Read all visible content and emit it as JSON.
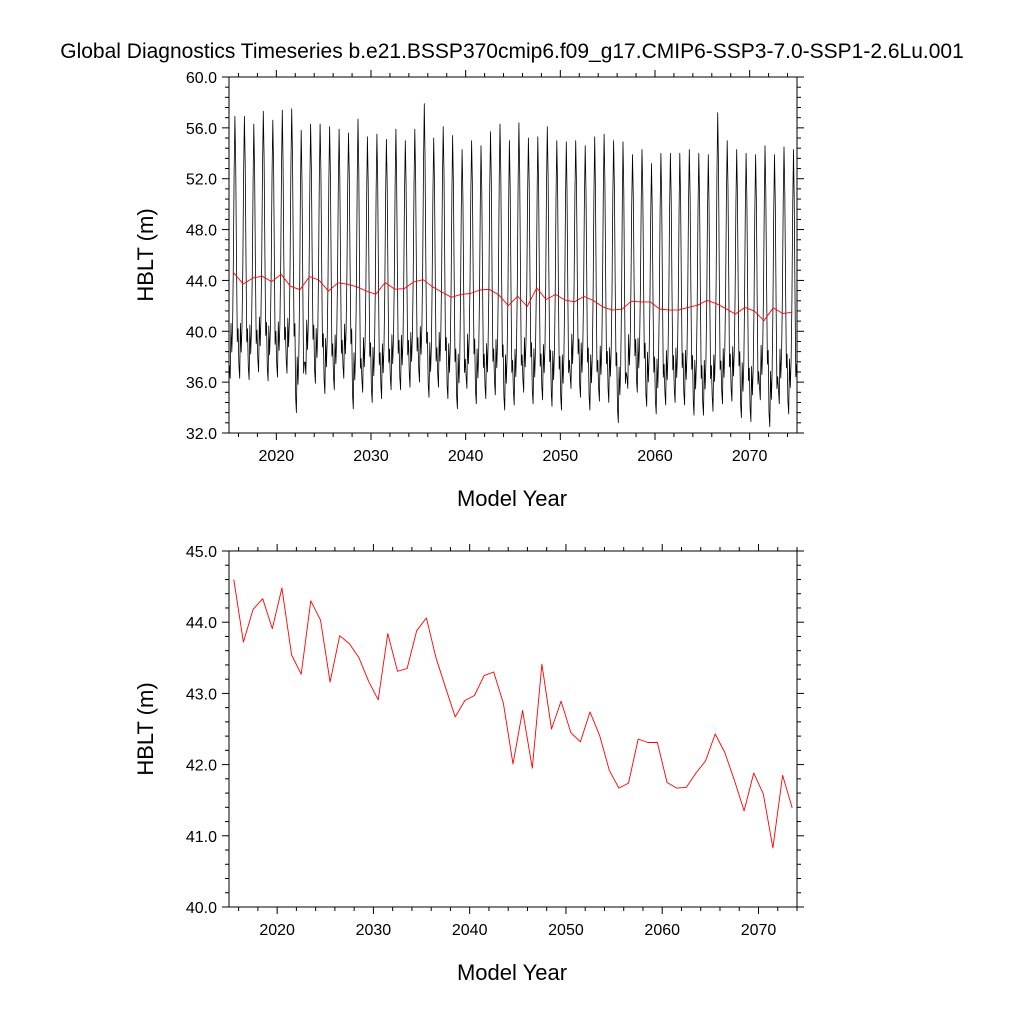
{
  "page": {
    "title": "Global Diagnostics Timeseries b.e21.BSSP370cmip6.f09_g17.CMIP6-SSP3-7.0-SSP1-2.6Lu.001"
  },
  "colors": {
    "monthly": "#000000",
    "annual": "#ff0000",
    "axis": "#000000"
  },
  "chart_data": [
    {
      "type": "line",
      "title": "Global Diagnostics Timeseries b.e21.BSSP370cmip6.f09_g17.CMIP6-SSP3-7.0-SSP1-2.6Lu.001",
      "xlabel": "Model Year",
      "ylabel": "HBLT (m)",
      "xlim": [
        2015,
        2075
      ],
      "ylim": [
        32.0,
        60.0
      ],
      "yticks": [
        32.0,
        36.0,
        40.0,
        44.0,
        48.0,
        52.0,
        56.0,
        60.0
      ],
      "ytick_labels": [
        "32.0",
        "36.0",
        "40.0",
        "44.0",
        "48.0",
        "52.0",
        "56.0",
        "60.0"
      ],
      "xticks": [
        2020,
        2030,
        2040,
        2050,
        2060,
        2070
      ],
      "xtick_labels": [
        "2020",
        "2030",
        "2040",
        "2050",
        "2060",
        "2070"
      ],
      "grid": false,
      "series": [
        {
          "color": "#000000",
          "frequency": "monthly",
          "annual_cycle": {
            "start_year": 2015,
            "end_year": 2075,
            "peak_month": 8,
            "trough_month": 1,
            "years": [
              2016,
              2017,
              2018,
              2019,
              2020,
              2021,
              2022,
              2023,
              2024,
              2025,
              2026,
              2027,
              2028,
              2029,
              2030,
              2031,
              2032,
              2033,
              2034,
              2035,
              2036,
              2037,
              2038,
              2039,
              2040,
              2041,
              2042,
              2043,
              2044,
              2045,
              2046,
              2047,
              2048,
              2049,
              2050,
              2051,
              2052,
              2053,
              2054,
              2055,
              2056,
              2057,
              2058,
              2059,
              2060,
              2061,
              2062,
              2063,
              2064,
              2065,
              2066,
              2067,
              2068,
              2069,
              2070,
              2071,
              2072,
              2073,
              2074
            ],
            "yearly_max": [
              56.9,
              56.3,
              57.3,
              56.6,
              57.4,
              57.5,
              55.8,
              56.3,
              56.3,
              56.1,
              55.9,
              55.6,
              56.7,
              55.3,
              55.5,
              55.1,
              55.9,
              55.0,
              55.9,
              57.9,
              55.2,
              56.1,
              55.4,
              54.3,
              55.0,
              54.6,
              55.7,
              56.3,
              55.0,
              56.4,
              55.2,
              55.3,
              56.1,
              55.0,
              54.9,
              55.0,
              54.6,
              55.3,
              55.5,
              55.0,
              54.9,
              53.9,
              54.3,
              53.2,
              54.0,
              54.0,
              54.0,
              54.3,
              54.0,
              53.9,
              57.2,
              55.0,
              54.3,
              54.0,
              53.9,
              54.6,
              53.9,
              54.5,
              54.3
            ],
            "yearly_min": [
              36.3,
              36.2,
              36.8,
              36.1,
              36.4,
              36.7,
              33.6,
              36.6,
              35.9,
              35.1,
              35.4,
              36.3,
              33.9,
              35.2,
              34.4,
              34.7,
              35.4,
              35.4,
              35.6,
              36.0,
              34.8,
              35.6,
              34.7,
              33.9,
              35.5,
              34.3,
              34.7,
              35.0,
              33.8,
              34.2,
              35.2,
              34.3,
              34.6,
              34.1,
              33.8,
              35.5,
              34.8,
              33.8,
              34.5,
              34.4,
              32.8,
              35.5,
              35.2,
              34.1,
              33.5,
              34.2,
              34.4,
              34.2,
              33.4,
              33.4,
              33.7,
              34.3,
              34.5,
              33.2,
              32.9,
              34.6,
              32.5,
              34.3,
              33.5
            ]
          }
        },
        {
          "color": "#ff0000",
          "frequency": "annual",
          "x": [
            2015.5,
            2016.5,
            2017.5,
            2018.5,
            2019.5,
            2020.5,
            2021.5,
            2022.5,
            2023.5,
            2024.5,
            2025.5,
            2026.5,
            2027.5,
            2028.5,
            2029.5,
            2030.5,
            2031.5,
            2032.5,
            2033.5,
            2034.5,
            2035.5,
            2036.5,
            2037.5,
            2038.5,
            2039.5,
            2040.5,
            2041.5,
            2042.5,
            2043.5,
            2044.5,
            2045.5,
            2046.5,
            2047.5,
            2048.5,
            2049.5,
            2050.5,
            2051.5,
            2052.5,
            2053.5,
            2054.5,
            2055.5,
            2056.5,
            2057.5,
            2058.5,
            2059.5,
            2060.5,
            2061.5,
            2062.5,
            2063.5,
            2064.5,
            2065.5,
            2066.5,
            2067.5,
            2068.5,
            2069.5,
            2070.5,
            2071.5,
            2072.5,
            2073.5,
            2074.5
          ],
          "values": [
            44.6,
            43.72,
            44.18,
            44.33,
            43.91,
            44.48,
            43.54,
            43.27,
            44.3,
            44.03,
            43.16,
            43.81,
            43.7,
            43.5,
            43.17,
            42.91,
            43.84,
            43.31,
            43.35,
            43.88,
            44.06,
            43.5,
            43.08,
            42.67,
            42.9,
            42.97,
            43.25,
            43.3,
            42.86,
            42.01,
            42.76,
            41.95,
            43.41,
            42.5,
            42.89,
            42.45,
            42.32,
            42.74,
            42.41,
            41.92,
            41.67,
            41.74,
            42.36,
            42.31,
            42.31,
            41.75,
            41.67,
            41.68,
            41.88,
            42.05,
            42.43,
            42.17,
            41.78,
            41.35,
            41.88,
            41.59,
            40.83,
            41.85,
            41.39,
            41.5
          ]
        }
      ]
    },
    {
      "type": "line",
      "title": "",
      "xlabel": "Model Year",
      "ylabel": "HBLT (m)",
      "xlim": [
        2015,
        2074
      ],
      "ylim": [
        40.0,
        45.0
      ],
      "yticks": [
        40.0,
        41.0,
        42.0,
        43.0,
        44.0,
        45.0
      ],
      "ytick_labels": [
        "40.0",
        "41.0",
        "42.0",
        "43.0",
        "44.0",
        "45.0"
      ],
      "xticks": [
        2020,
        2030,
        2040,
        2050,
        2060,
        2070
      ],
      "xtick_labels": [
        "2020",
        "2030",
        "2040",
        "2050",
        "2060",
        "2070"
      ],
      "grid": false,
      "series": [
        {
          "color": "#ff0000",
          "frequency": "annual",
          "x": [
            2015.5,
            2016.5,
            2017.5,
            2018.5,
            2019.5,
            2020.5,
            2021.5,
            2022.5,
            2023.5,
            2024.5,
            2025.5,
            2026.5,
            2027.5,
            2028.5,
            2029.5,
            2030.5,
            2031.5,
            2032.5,
            2033.5,
            2034.5,
            2035.5,
            2036.5,
            2037.5,
            2038.5,
            2039.5,
            2040.5,
            2041.5,
            2042.5,
            2043.5,
            2044.5,
            2045.5,
            2046.5,
            2047.5,
            2048.5,
            2049.5,
            2050.5,
            2051.5,
            2052.5,
            2053.5,
            2054.5,
            2055.5,
            2056.5,
            2057.5,
            2058.5,
            2059.5,
            2060.5,
            2061.5,
            2062.5,
            2063.5,
            2064.5,
            2065.5,
            2066.5,
            2067.5,
            2068.5,
            2069.5,
            2070.5,
            2071.5,
            2072.5,
            2073.5
          ],
          "values": [
            44.6,
            43.72,
            44.18,
            44.33,
            43.91,
            44.48,
            43.54,
            43.27,
            44.3,
            44.03,
            43.16,
            43.81,
            43.7,
            43.5,
            43.17,
            42.91,
            43.84,
            43.31,
            43.35,
            43.88,
            44.06,
            43.5,
            43.08,
            42.67,
            42.9,
            42.97,
            43.25,
            43.3,
            42.86,
            42.01,
            42.76,
            41.95,
            43.41,
            42.5,
            42.89,
            42.45,
            42.32,
            42.74,
            42.41,
            41.92,
            41.67,
            41.74,
            42.36,
            42.31,
            42.31,
            41.75,
            41.67,
            41.68,
            41.88,
            42.05,
            42.43,
            42.17,
            41.78,
            41.35,
            41.88,
            41.59,
            40.83,
            41.85,
            41.39
          ]
        }
      ]
    }
  ]
}
